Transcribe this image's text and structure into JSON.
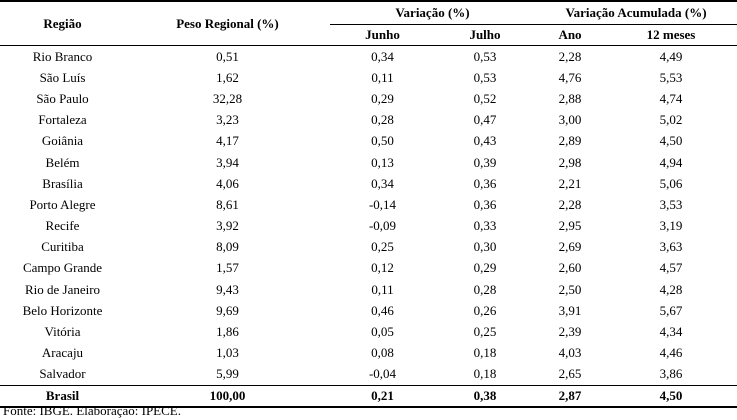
{
  "headers": {
    "regiao": "Região",
    "peso": "Peso Regional (%)",
    "variacao": "Variação (%)",
    "junho": "Junho",
    "julho": "Julho",
    "acumulada": "Variação Acumulada (%)",
    "ano": "Ano",
    "meses12": "12 meses"
  },
  "rows": [
    {
      "regiao": "Rio Branco",
      "peso": "0,51",
      "junho": "0,34",
      "julho": "0,53",
      "ano": "2,28",
      "m12": "4,49"
    },
    {
      "regiao": "São Luís",
      "peso": "1,62",
      "junho": "0,11",
      "julho": "0,53",
      "ano": "4,76",
      "m12": "5,53"
    },
    {
      "regiao": "São Paulo",
      "peso": "32,28",
      "junho": "0,29",
      "julho": "0,52",
      "ano": "2,88",
      "m12": "4,74"
    },
    {
      "regiao": "Fortaleza",
      "peso": "3,23",
      "junho": "0,28",
      "julho": "0,47",
      "ano": "3,00",
      "m12": "5,02"
    },
    {
      "regiao": "Goiânia",
      "peso": "4,17",
      "junho": "0,50",
      "julho": "0,43",
      "ano": "2,89",
      "m12": "4,50"
    },
    {
      "regiao": "Belém",
      "peso": "3,94",
      "junho": "0,13",
      "julho": "0,39",
      "ano": "2,98",
      "m12": "4,94"
    },
    {
      "regiao": "Brasília",
      "peso": "4,06",
      "junho": "0,34",
      "julho": "0,36",
      "ano": "2,21",
      "m12": "5,06"
    },
    {
      "regiao": "Porto Alegre",
      "peso": "8,61",
      "junho": "-0,14",
      "julho": "0,36",
      "ano": "2,28",
      "m12": "3,53"
    },
    {
      "regiao": "Recife",
      "peso": "3,92",
      "junho": "-0,09",
      "julho": "0,33",
      "ano": "2,95",
      "m12": "3,19"
    },
    {
      "regiao": "Curitiba",
      "peso": "8,09",
      "junho": "0,25",
      "julho": "0,30",
      "ano": "2,69",
      "m12": "3,63"
    },
    {
      "regiao": "Campo Grande",
      "peso": "1,57",
      "junho": "0,12",
      "julho": "0,29",
      "ano": "2,60",
      "m12": "4,57"
    },
    {
      "regiao": "Rio de Janeiro",
      "peso": "9,43",
      "junho": "0,11",
      "julho": "0,28",
      "ano": "2,50",
      "m12": "4,28"
    },
    {
      "regiao": "Belo Horizonte",
      "peso": "9,69",
      "junho": "0,46",
      "julho": "0,26",
      "ano": "3,91",
      "m12": "5,67"
    },
    {
      "regiao": "Vitória",
      "peso": "1,86",
      "junho": "0,05",
      "julho": "0,25",
      "ano": "2,39",
      "m12": "4,34"
    },
    {
      "regiao": "Aracaju",
      "peso": "1,03",
      "junho": "0,08",
      "julho": "0,18",
      "ano": "4,03",
      "m12": "4,46"
    },
    {
      "regiao": "Salvador",
      "peso": "5,99",
      "junho": "-0,04",
      "julho": "0,18",
      "ano": "2,65",
      "m12": "3,86"
    }
  ],
  "total": {
    "regiao": "Brasil",
    "peso": "100,00",
    "junho": "0,21",
    "julho": "0,38",
    "ano": "2,87",
    "m12": "4,50"
  },
  "source": "Fonte: IBGE. Elaboração: IPECE."
}
